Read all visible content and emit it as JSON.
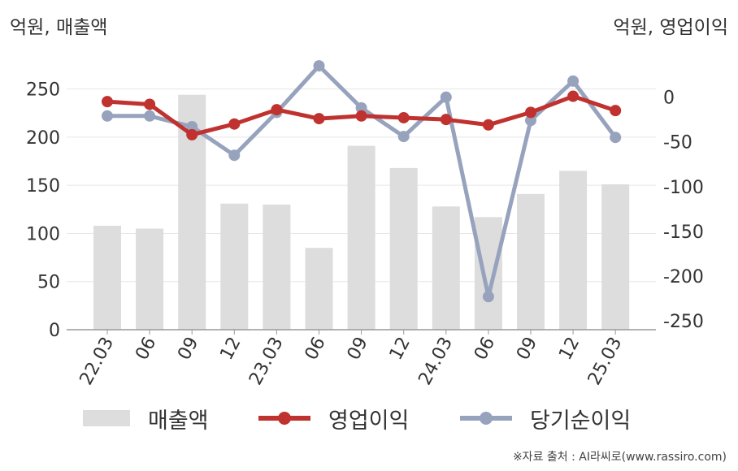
{
  "units": {
    "left": "억원, 매출액",
    "right": "억원, 영업이익"
  },
  "source": "※자료 출처 : AI라씨로(www.rassiro.com)",
  "colors": {
    "bar": "#dddddd",
    "op": "#c0322f",
    "net": "#97a3bd",
    "axis": "#999999",
    "grid": "#e6e6e6"
  },
  "chart_data": {
    "type": "bar+line",
    "categories": [
      "22.03",
      "06",
      "09",
      "12",
      "23.03",
      "06",
      "09",
      "12",
      "24.03",
      "06",
      "09",
      "12",
      "25.03"
    ],
    "left_axis": {
      "ylim": [
        0,
        275
      ],
      "ticks": [
        0,
        50,
        100,
        150,
        200,
        250
      ]
    },
    "right_axis": {
      "ylim": [
        -260,
        36
      ],
      "ticks": [
        0,
        -50,
        -100,
        -150,
        -200,
        -250
      ]
    },
    "series": [
      {
        "name": "매출액",
        "type": "bar",
        "axis": "left",
        "values": [
          108,
          105,
          244,
          131,
          130,
          85,
          191,
          168,
          128,
          117,
          141,
          165,
          151
        ]
      },
      {
        "name": "영업이익",
        "type": "line",
        "axis": "right",
        "values": [
          -5,
          -8,
          -42,
          -30,
          -14,
          -24,
          -21,
          -23,
          -25,
          -31,
          -17,
          1,
          -15
        ]
      },
      {
        "name": "당기순이익",
        "type": "line",
        "axis": "right",
        "values": [
          -21,
          -21,
          -33,
          -65,
          -17,
          35,
          -12,
          -44,
          0,
          -223,
          -26,
          18,
          -45
        ]
      }
    ],
    "legend": "bottom"
  }
}
